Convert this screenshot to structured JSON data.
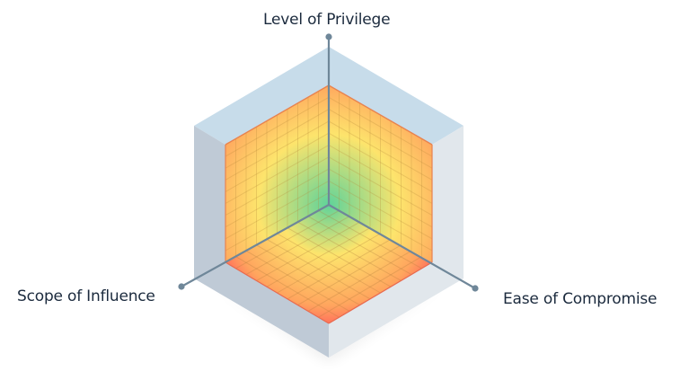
{
  "diagram": {
    "type": "isometric-cube-3-axis",
    "axes": [
      {
        "id": "top",
        "label": "Level of Privilege"
      },
      {
        "id": "left",
        "label": "Scope of Influence"
      },
      {
        "id": "right",
        "label": "Ease of Compromise"
      }
    ],
    "grid_divisions": 10,
    "colors": {
      "frame_top": "#c7dcea",
      "frame_left": "#bfcad6",
      "frame_right": "#e1e7ec",
      "axis_line": "#6f8799",
      "gradient_low": "#62d39a",
      "gradient_mid": "#fde46c",
      "gradient_high": "#ff5f5b",
      "label_text": "#1b2a3d"
    }
  }
}
